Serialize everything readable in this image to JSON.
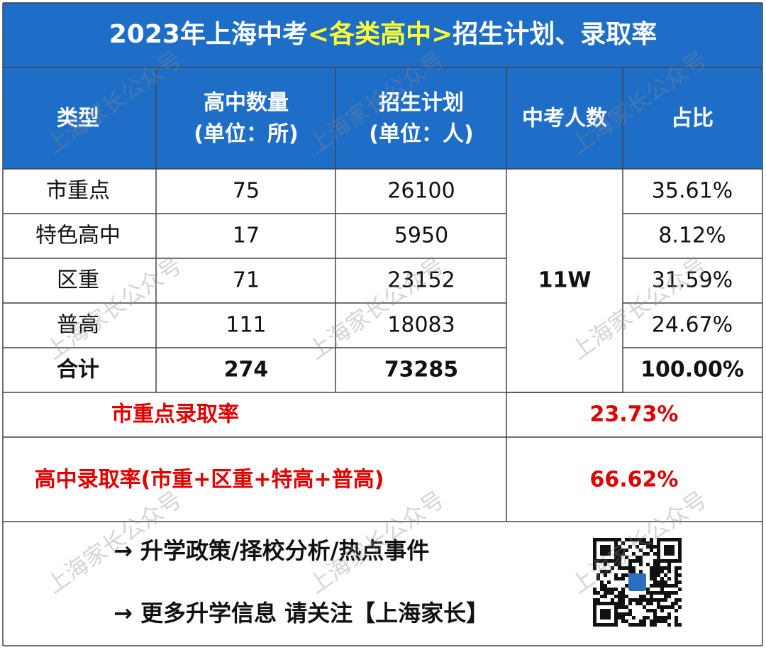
{
  "title": {
    "part1": "2023年上海中考",
    "highlight": "<各类高中>",
    "part2": "招生计划、录取率"
  },
  "table": {
    "headers": [
      {
        "lines": [
          "类型"
        ]
      },
      {
        "lines": [
          "高中数量",
          "(单位：所)"
        ]
      },
      {
        "lines": [
          "招生计划",
          "(单位：人)"
        ]
      },
      {
        "lines": [
          "中考人数"
        ]
      },
      {
        "lines": [
          "占比"
        ]
      }
    ],
    "rows": [
      [
        "市重点",
        "75",
        "26100",
        "35.61%"
      ],
      [
        "特色高中",
        "17",
        "5950",
        "8.12%"
      ],
      [
        "区重",
        "71",
        "23152",
        "31.59%"
      ],
      [
        "普高",
        "111",
        "18083",
        "24.67%"
      ]
    ],
    "total": [
      "合计",
      "274",
      "73285",
      "100.00%"
    ],
    "exam_takers": "11W",
    "summary": [
      {
        "label": "市重点录取率",
        "value": "23.73%"
      },
      {
        "label": "高中录取率(市重+区重+特高+普高)",
        "value": "66.62%"
      }
    ]
  },
  "footer": {
    "lines": [
      "→ 升学政策/择校分析/热点事件",
      "→ 更多升学信息 请关注【上海家长】"
    ]
  },
  "watermark": "上海家长公众号"
}
